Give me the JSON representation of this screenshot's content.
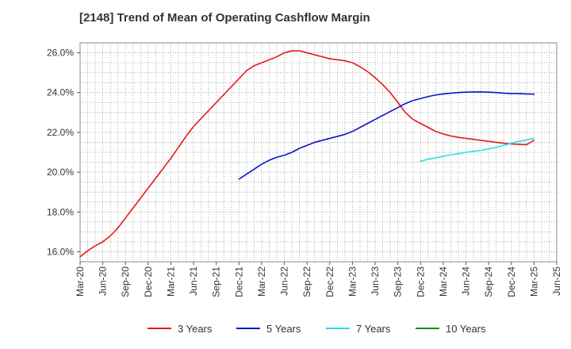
{
  "chart_data": {
    "type": "line",
    "title": "[2148]  Trend of Mean of Operating Cashflow Margin",
    "xlabel": "",
    "ylabel": "",
    "x_ticks": [
      "Mar-20",
      "Jun-20",
      "Sep-20",
      "Dec-20",
      "Mar-21",
      "Jun-21",
      "Sep-21",
      "Dec-21",
      "Mar-22",
      "Jun-22",
      "Sep-22",
      "Dec-22",
      "Mar-23",
      "Jun-23",
      "Sep-23",
      "Dec-23",
      "Mar-24",
      "Jun-24",
      "Sep-24",
      "Dec-24",
      "Mar-25",
      "Jun-25"
    ],
    "y_ticks": [
      "16.0%",
      "18.0%",
      "20.0%",
      "22.0%",
      "24.0%",
      "26.0%"
    ],
    "ylim": [
      15.5,
      26.5
    ],
    "grid": true,
    "legend_position": "bottom",
    "series": [
      {
        "name": "3 Years",
        "color": "#e31a1c",
        "x": [
          "Mar-20",
          "Apr-20",
          "May-20",
          "Jun-20",
          "Jul-20",
          "Aug-20",
          "Sep-20",
          "Oct-20",
          "Nov-20",
          "Dec-20",
          "Jan-21",
          "Feb-21",
          "Mar-21",
          "Apr-21",
          "May-21",
          "Jun-21",
          "Jul-21",
          "Aug-21",
          "Sep-21",
          "Oct-21",
          "Nov-21",
          "Dec-21",
          "Jan-22",
          "Feb-22",
          "Mar-22",
          "Apr-22",
          "May-22",
          "Jun-22",
          "Jul-22",
          "Aug-22",
          "Sep-22",
          "Oct-22",
          "Nov-22",
          "Dec-22",
          "Jan-23",
          "Feb-23",
          "Mar-23",
          "Apr-23",
          "May-23",
          "Jun-23",
          "Jul-23",
          "Aug-23",
          "Sep-23",
          "Oct-23",
          "Nov-23",
          "Dec-23",
          "Jan-24",
          "Feb-24",
          "Mar-24",
          "Apr-24",
          "May-24",
          "Jun-24",
          "Jul-24",
          "Aug-24",
          "Sep-24",
          "Oct-24",
          "Nov-24",
          "Dec-24",
          "Jan-25",
          "Feb-25",
          "Mar-25"
        ],
        "values": [
          15.75,
          16.05,
          16.3,
          16.5,
          16.8,
          17.2,
          17.7,
          18.2,
          18.7,
          19.2,
          19.7,
          20.2,
          20.7,
          21.25,
          21.8,
          22.3,
          22.7,
          23.1,
          23.5,
          23.9,
          24.3,
          24.7,
          25.1,
          25.35,
          25.5,
          25.65,
          25.8,
          26.0,
          26.1,
          26.1,
          26.0,
          25.9,
          25.8,
          25.7,
          25.65,
          25.6,
          25.5,
          25.3,
          25.05,
          24.75,
          24.4,
          24.0,
          23.5,
          23.0,
          22.65,
          22.45,
          22.25,
          22.05,
          21.92,
          21.82,
          21.75,
          21.7,
          21.65,
          21.6,
          21.55,
          21.5,
          21.45,
          21.42,
          21.4,
          21.38,
          21.6
        ]
      },
      {
        "name": "5 Years",
        "color": "#0a14c8",
        "x": [
          "Dec-21",
          "Jan-22",
          "Feb-22",
          "Mar-22",
          "Apr-22",
          "May-22",
          "Jun-22",
          "Jul-22",
          "Aug-22",
          "Sep-22",
          "Oct-22",
          "Nov-22",
          "Dec-22",
          "Jan-23",
          "Feb-23",
          "Mar-23",
          "Apr-23",
          "May-23",
          "Jun-23",
          "Jul-23",
          "Aug-23",
          "Sep-23",
          "Oct-23",
          "Nov-23",
          "Dec-23",
          "Jan-24",
          "Feb-24",
          "Mar-24",
          "Apr-24",
          "May-24",
          "Jun-24",
          "Jul-24",
          "Aug-24",
          "Sep-24",
          "Oct-24",
          "Nov-24",
          "Dec-24",
          "Jan-25",
          "Feb-25",
          "Mar-25"
        ],
        "values": [
          19.65,
          19.9,
          20.15,
          20.4,
          20.6,
          20.75,
          20.85,
          21.0,
          21.2,
          21.35,
          21.5,
          21.6,
          21.7,
          21.8,
          21.9,
          22.05,
          22.25,
          22.45,
          22.65,
          22.85,
          23.05,
          23.25,
          23.45,
          23.6,
          23.7,
          23.8,
          23.88,
          23.93,
          23.97,
          24.0,
          24.02,
          24.03,
          24.03,
          24.02,
          24.0,
          23.97,
          23.95,
          23.95,
          23.93,
          23.92
        ]
      },
      {
        "name": "7 Years",
        "color": "#22e0e6",
        "x": [
          "Dec-23",
          "Jan-24",
          "Feb-24",
          "Mar-24",
          "Apr-24",
          "May-24",
          "Jun-24",
          "Jul-24",
          "Aug-24",
          "Sep-24",
          "Oct-24",
          "Nov-24",
          "Dec-24",
          "Jan-25",
          "Feb-25",
          "Mar-25"
        ],
        "values": [
          20.55,
          20.65,
          20.72,
          20.8,
          20.87,
          20.93,
          21.0,
          21.05,
          21.1,
          21.17,
          21.25,
          21.35,
          21.45,
          21.55,
          21.62,
          21.7
        ]
      },
      {
        "name": "10 Years",
        "color": "#1a8a1a",
        "x": [],
        "values": []
      }
    ]
  }
}
